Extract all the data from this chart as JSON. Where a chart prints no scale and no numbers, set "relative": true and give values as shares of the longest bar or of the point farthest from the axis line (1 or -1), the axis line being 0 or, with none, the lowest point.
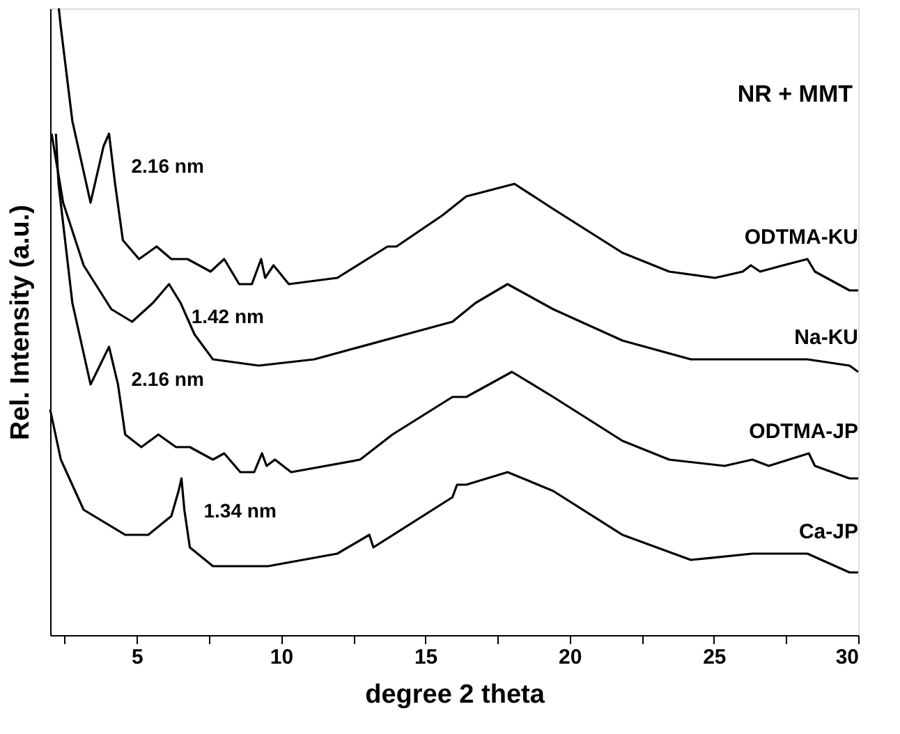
{
  "chart_data": {
    "type": "line",
    "title": "NR + MMT",
    "xlabel": "degree 2 theta",
    "ylabel": "Rel. Intensity (a.u.)",
    "relative": true,
    "legend": false,
    "grid": false,
    "marker": "none",
    "line_style": "solid",
    "tick_labels": "x",
    "xlim": [
      2,
      30
    ],
    "xticks": [
      {
        "value": 2.5,
        "label": null
      },
      5,
      {
        "value": 7.5,
        "label": null
      },
      10,
      {
        "value": 12.5,
        "label": null
      },
      15,
      {
        "value": 17.5,
        "label": null
      },
      20,
      {
        "value": 22.5,
        "label": null
      },
      25,
      {
        "value": 27.5,
        "label": null
      },
      30
    ],
    "series": [
      {
        "name": "ODTMA-KU",
        "color": "#000000",
        "x": [
          2.3,
          2.37,
          2.77,
          3.4,
          3.85,
          4.04,
          4.25,
          4.52,
          5.08,
          5.69,
          6.2,
          6.76,
          7.56,
          8.03,
          8.55,
          8.99,
          9.31,
          9.45,
          9.74,
          10.27,
          11.95,
          13.69,
          14.0,
          15.6,
          16.42,
          18.09,
          19.43,
          21.83,
          23.45,
          25.04,
          26.0,
          26.28,
          26.6,
          27.4,
          28.24,
          28.5,
          29.7,
          30
        ],
        "values": [
          1,
          0.97,
          0.82,
          0.69,
          0.78,
          0.8,
          0.72,
          0.63,
          0.6,
          0.62,
          0.6,
          0.6,
          0.58,
          0.6,
          0.56,
          0.56,
          0.6,
          0.57,
          0.59,
          0.56,
          0.57,
          0.62,
          0.62,
          0.67,
          0.7,
          0.72,
          0.68,
          0.61,
          0.58,
          0.57,
          0.58,
          0.59,
          0.58,
          0.59,
          0.6,
          0.58,
          0.55,
          0.55
        ]
      },
      {
        "name": "Na-KU",
        "color": "#000000",
        "x": [
          2.05,
          2.45,
          3.16,
          4.12,
          4.84,
          5.56,
          6.12,
          6.52,
          7.0,
          7.64,
          9.23,
          11.15,
          14.34,
          15.94,
          16.74,
          17.85,
          19.43,
          21.83,
          24.2,
          26.6,
          28.24,
          29.7,
          30
        ],
        "values": [
          0.8,
          0.69,
          0.59,
          0.52,
          0.5,
          0.53,
          0.56,
          0.53,
          0.48,
          0.44,
          0.43,
          0.44,
          0.48,
          0.5,
          0.53,
          0.56,
          0.52,
          0.47,
          0.44,
          0.44,
          0.44,
          0.43,
          0.42
        ]
      },
      {
        "name": "ODTMA-JP",
        "color": "#000000",
        "x": [
          2.2,
          2.29,
          2.77,
          3.4,
          4.04,
          4.35,
          4.6,
          5.16,
          5.75,
          6.36,
          6.84,
          7.64,
          8.03,
          8.59,
          9.07,
          9.34,
          9.5,
          9.79,
          10.35,
          12.74,
          13.86,
          15.94,
          16.42,
          18.0,
          19.43,
          21.83,
          23.45,
          25.37,
          26.33,
          26.9,
          28.29,
          28.5,
          29.7,
          30
        ],
        "values": [
          0.8,
          0.72,
          0.53,
          0.4,
          0.46,
          0.4,
          0.32,
          0.3,
          0.32,
          0.3,
          0.3,
          0.28,
          0.29,
          0.26,
          0.26,
          0.29,
          0.27,
          0.28,
          0.26,
          0.28,
          0.32,
          0.38,
          0.38,
          0.42,
          0.38,
          0.31,
          0.28,
          0.27,
          0.28,
          0.27,
          0.29,
          0.27,
          0.25,
          0.25
        ]
      },
      {
        "name": "Ca-JP",
        "color": "#000000",
        "x": [
          2.0,
          2.37,
          3.16,
          4.6,
          5.4,
          6.2,
          6.45,
          6.55,
          6.65,
          6.84,
          7.64,
          9.55,
          11.95,
          13.06,
          13.2,
          15.94,
          16.1,
          16.42,
          17.85,
          19.43,
          21.83,
          24.2,
          26.33,
          28.24,
          29.7,
          30
        ],
        "values": [
          0.36,
          0.28,
          0.2,
          0.16,
          0.16,
          0.19,
          0.23,
          0.25,
          0.2,
          0.14,
          0.11,
          0.11,
          0.13,
          0.16,
          0.14,
          0.22,
          0.24,
          0.24,
          0.26,
          0.23,
          0.16,
          0.12,
          0.13,
          0.13,
          0.1,
          0.1
        ]
      }
    ],
    "annotations": [
      {
        "text": "2.16 nm",
        "x": 4.04,
        "y": 0.8
      },
      {
        "text": "1.42 nm",
        "x": 6.12,
        "y": 0.56
      },
      {
        "text": "2.16 nm",
        "x": 4.04,
        "y": 0.46
      },
      {
        "text": "1.34 nm",
        "x": 6.55,
        "y": 0.25
      }
    ]
  }
}
